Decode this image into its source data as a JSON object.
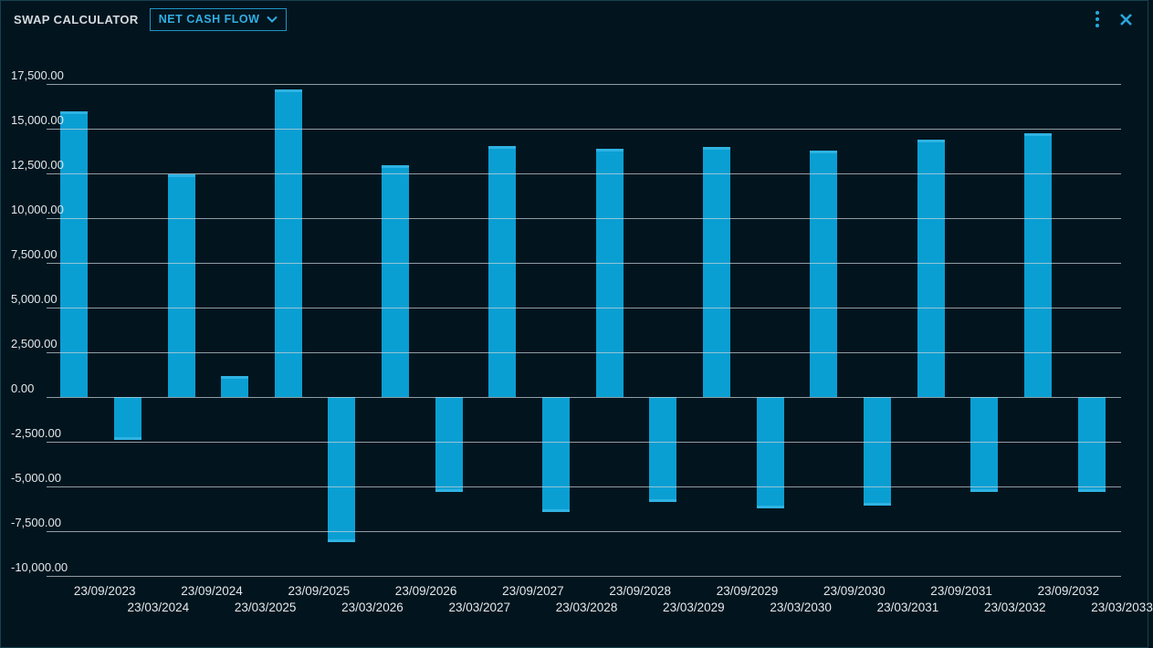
{
  "window": {
    "title": "SWAP CALCULATOR",
    "view_selector": {
      "label": "NET CASH FLOW",
      "expanded": false
    },
    "icons": {
      "menu": "kebab-menu-icon",
      "close": "close-icon"
    }
  },
  "colors": {
    "background": "#02151f",
    "accent_cyan": "#2aa7dc",
    "bar": "#0a9fd3",
    "grid": "#c8d3d8",
    "text": "#e3e7e9",
    "border": "#17404f"
  },
  "chart_data": {
    "type": "bar",
    "title": "",
    "xlabel": "",
    "ylabel": "",
    "categories": [
      "23/09/2023",
      "23/03/2024",
      "23/09/2024",
      "23/03/2025",
      "23/09/2025",
      "23/03/2026",
      "23/09/2026",
      "23/03/2027",
      "23/09/2027",
      "23/03/2028",
      "23/09/2028",
      "23/03/2029",
      "23/09/2029",
      "23/03/2030",
      "23/09/2030",
      "23/03/2031",
      "23/09/2031",
      "23/03/2032",
      "23/09/2032",
      "23/03/2033"
    ],
    "values": [
      15950,
      -2400,
      12450,
      1150,
      17200,
      -8100,
      12950,
      -5300,
      14050,
      -6450,
      13900,
      -5850,
      14000,
      -6200,
      13800,
      -6050,
      14400,
      -5300,
      14750,
      -5300
    ],
    "y_ticks": [
      17500,
      15000,
      12500,
      10000,
      7500,
      5000,
      2500,
      0,
      -2500,
      -5000,
      -7500,
      -10000
    ],
    "y_tick_labels": [
      "17,500.00",
      "15,000.00",
      "12,500.00",
      "10,000.00",
      "7,500.00",
      "5,000.00",
      "2,500.00",
      "0.00",
      "-2,500.00",
      "-5,000.00",
      "-7,500.00",
      "-10,000.00"
    ],
    "ylim": [
      -10000,
      17500
    ],
    "grid": true,
    "legend": false,
    "bar_color": "#0a9fd3"
  }
}
